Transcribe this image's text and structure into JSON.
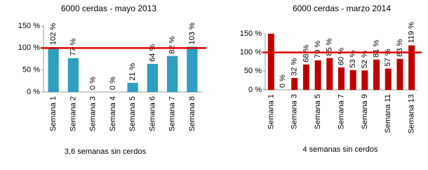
{
  "chart_data": [
    {
      "type": "bar",
      "title": "6000 cerdas - mayo 2013",
      "categories": [
        "Semana 1",
        "Semana 2",
        "Semana 3",
        "Semana 4",
        "Semana 5",
        "Semana 6",
        "Semana 7",
        "Semana 8"
      ],
      "values": [
        102,
        77,
        0,
        0,
        21,
        64,
        82,
        103
      ],
      "value_labels": [
        "102 %",
        "77 %",
        "0 %",
        "0 %",
        "21 %",
        "64 %",
        "82 %",
        "103 %"
      ],
      "color": "#2e9fc0",
      "ylim": [
        0,
        150
      ],
      "yticks": [
        {
          "value": 0,
          "label": "0 %"
        },
        {
          "value": 50,
          "label": "50 %"
        },
        {
          "value": 100,
          "label": "100 %"
        },
        {
          "value": 150,
          "label": "150 %"
        }
      ],
      "reference_line": 100,
      "reference_color": "#e00000",
      "annotation": "3,6 semanas sin cerdos",
      "grid": false
    },
    {
      "type": "bar",
      "title": "6000 cerdas - marzo 2014",
      "categories": [
        "Semana 1",
        null,
        "Semana 3",
        null,
        "Semana 5",
        null,
        "Semana 7",
        null,
        "Semana 9",
        null,
        "Semana 11",
        null,
        "Semana 13"
      ],
      "values": [
        150,
        0,
        32,
        68,
        79,
        85,
        60,
        53,
        52,
        81,
        57,
        83,
        119
      ],
      "value_labels": [
        null,
        "0 %",
        "32 %",
        "68 %",
        "79 %",
        "85 %",
        "60 %",
        "53 %",
        "52 %",
        "81 %",
        "57 %",
        "83 %",
        "119 %"
      ],
      "color": "#c00000",
      "ylim": [
        0,
        150
      ],
      "yticks": [
        {
          "value": 0,
          "label": "0 %"
        },
        {
          "value": 50,
          "label": "50 %"
        },
        {
          "value": 100,
          "label": "100 %"
        },
        {
          "value": 150,
          "label": "150 %"
        }
      ],
      "reference_line": 100,
      "reference_color": "#e00000",
      "annotation": "4 semanas sin cerdos",
      "grid": false
    }
  ]
}
